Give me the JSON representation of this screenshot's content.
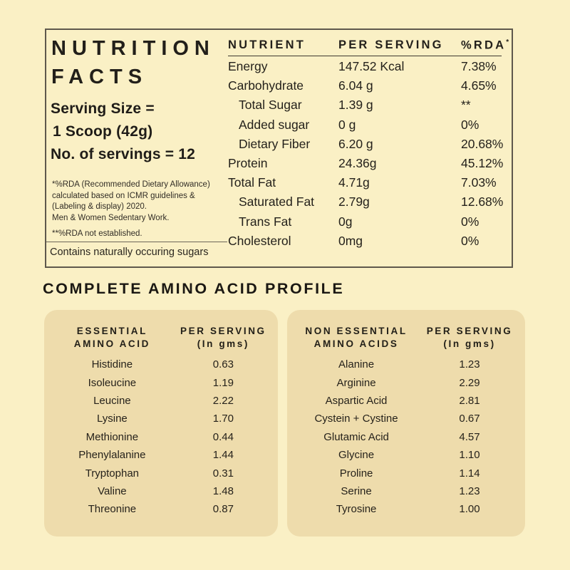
{
  "colors": {
    "page_background": "#FAF0C5",
    "panel_background": "#EEDCAC",
    "text": "#262219",
    "box_border": "#5e584c"
  },
  "nutrition_box": {
    "title_line1": "NUTRITION",
    "title_line2": "FACTS",
    "serving_size_label": "Serving Size =",
    "serving_size_value": "1 Scoop (42g)",
    "servings_count": "No. of servings = 12",
    "footnote1": "*%RDA (Recommended Dietary Allowance) calculated based on ICMR guidelines & (Labeling & display) 2020.",
    "footnote2": "Men & Women Sedentary Work.",
    "footnote3": "**%RDA not established.",
    "contains_note": "Contains naturally occuring sugars",
    "table": {
      "header_nutrient": "NUTRIENT",
      "header_per_serving": "PER SERVING",
      "header_rda": "%RDA",
      "header_rda_mark": "*",
      "rows": [
        {
          "name": "Energy",
          "per_serving": "147.52 Kcal",
          "rda": "7.38%"
        },
        {
          "name": "Carbohydrate",
          "per_serving": "6.04 g",
          "rda": "4.65%"
        },
        {
          "name": "Total Sugar",
          "per_serving": "1.39 g",
          "rda": "**"
        },
        {
          "name": "Added sugar",
          "per_serving": "0 g",
          "rda": "0%"
        },
        {
          "name": "Dietary Fiber",
          "per_serving": "6.20 g",
          "rda": "20.68%"
        },
        {
          "name": "Protein",
          "per_serving": "24.36g",
          "rda": "45.12%"
        },
        {
          "name": "Total Fat",
          "per_serving": "4.71g",
          "rda": "7.03%"
        },
        {
          "name": "Saturated Fat",
          "per_serving": "2.79g",
          "rda": "12.68%"
        },
        {
          "name": "Trans Fat",
          "per_serving": "0g",
          "rda": "0%"
        },
        {
          "name": "Cholesterol",
          "per_serving": "0mg",
          "rda": "0%"
        }
      ]
    }
  },
  "amino_section": {
    "heading": "COMPLETE AMINO ACID PROFILE",
    "essential": {
      "col1_line1": "ESSENTIAL",
      "col1_line2": "AMINO ACID",
      "col2_line1": "PER SERVING",
      "col2_line2": "(In gms)",
      "rows": [
        {
          "name": "Histidine",
          "value": "0.63"
        },
        {
          "name": "Isoleucine",
          "value": "1.19"
        },
        {
          "name": "Leucine",
          "value": "2.22"
        },
        {
          "name": "Lysine",
          "value": "1.70"
        },
        {
          "name": "Methionine",
          "value": "0.44"
        },
        {
          "name": "Phenylalanine",
          "value": "1.44"
        },
        {
          "name": "Tryptophan",
          "value": "0.31"
        },
        {
          "name": "Valine",
          "value": "1.48"
        },
        {
          "name": "Threonine",
          "value": "0.87"
        }
      ]
    },
    "non_essential": {
      "col1_line1": "NON ESSENTIAL",
      "col1_line2": "AMINO ACIDS",
      "col2_line1": "PER SERVING",
      "col2_line2": "(In gms)",
      "rows": [
        {
          "name": "Alanine",
          "value": "1.23"
        },
        {
          "name": "Arginine",
          "value": "2.29"
        },
        {
          "name": "Aspartic Acid",
          "value": "2.81"
        },
        {
          "name": "Cystein + Cystine",
          "value": "0.67"
        },
        {
          "name": "Glutamic Acid",
          "value": "4.57"
        },
        {
          "name": "Glycine",
          "value": "1.10"
        },
        {
          "name": "Proline",
          "value": "1.14"
        },
        {
          "name": "Serine",
          "value": "1.23"
        },
        {
          "name": "Tyrosine",
          "value": "1.00"
        }
      ]
    }
  }
}
